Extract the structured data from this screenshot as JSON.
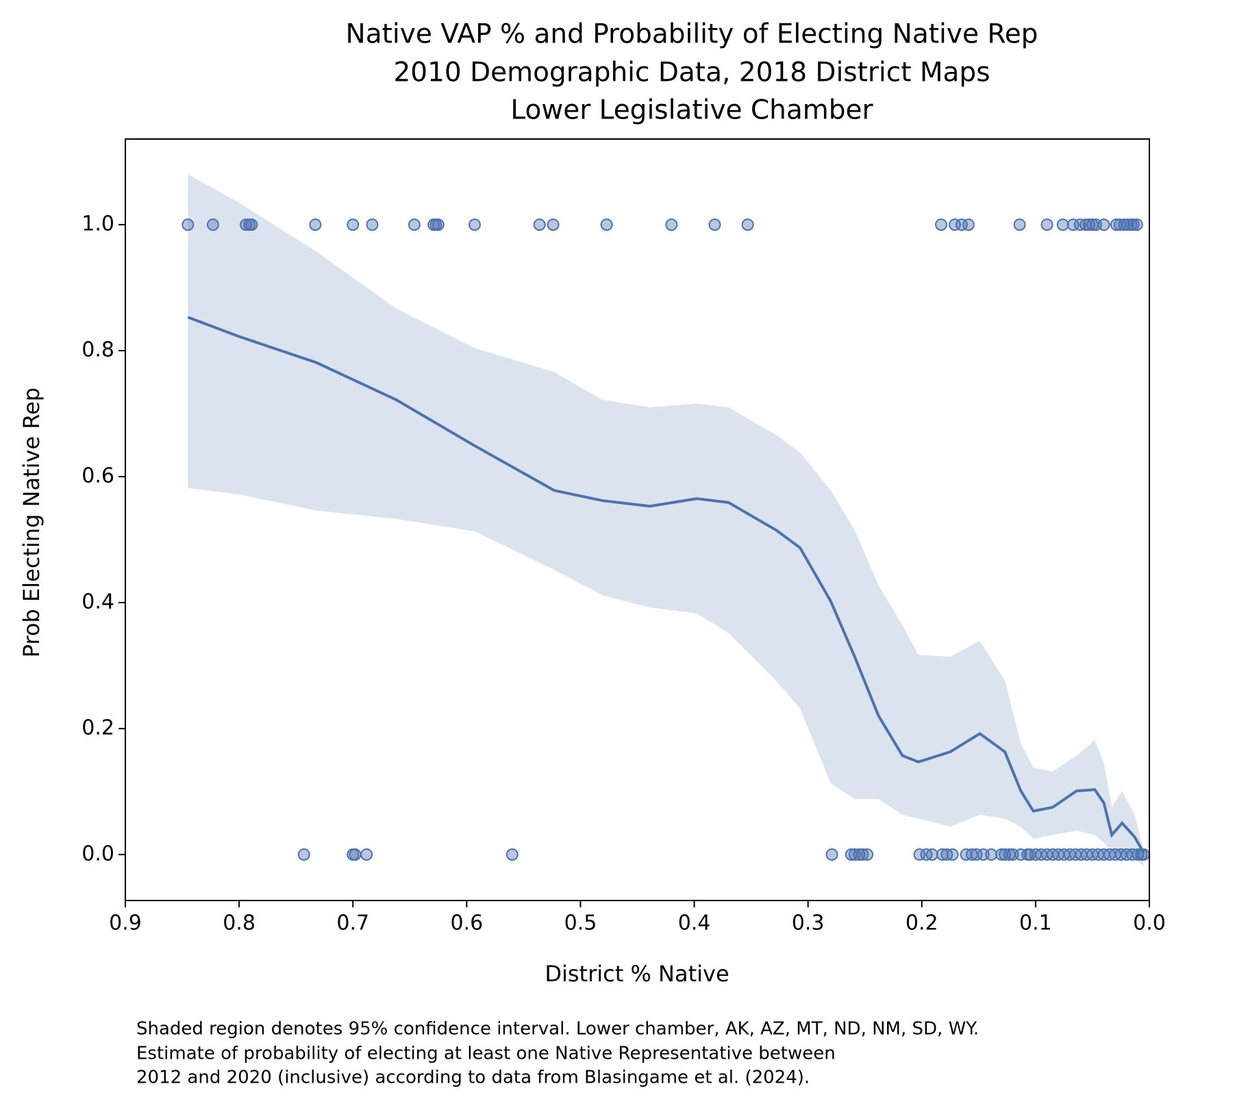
{
  "chart_data": {
    "type": "scatter",
    "title": [
      "Native VAP % and Probability of Electing Native Rep",
      "2010 Demographic Data, 2018 District Maps",
      "Lower Legislative Chamber"
    ],
    "xlabel": "District % Native",
    "ylabel": "Prob Electing Native Rep",
    "footnote": [
      "Shaded region denotes 95% confidence interval. Lower chamber, AK, AZ, MT, ND, NM, SD, WY.",
      "Estimate of probability of electing at least one Native Representative between",
      "2012 and 2020 (inclusive) according to data from Blasingame et al. (2024)."
    ],
    "xlim": [
      0.9,
      0
    ],
    "ylim": [
      -0.073,
      1.136
    ],
    "xticks": [
      0.9,
      0.8,
      0.7,
      0.6,
      0.5,
      0.4,
      0.3,
      0.2,
      0.1,
      {
        "value": 0,
        "label": "0.0"
      }
    ],
    "yticks": [
      {
        "value": 0,
        "label": "0.0"
      },
      0.2,
      0.4,
      0.6,
      0.8,
      {
        "value": 1,
        "label": "1.0"
      }
    ],
    "color": "#4c72b0",
    "points": {
      "x": [
        0.845,
        0.823,
        0.794,
        0.791,
        0.789,
        0.733,
        0.7,
        0.683,
        0.646,
        0.629,
        0.627,
        0.625,
        0.593,
        0.536,
        0.524,
        0.477,
        0.42,
        0.382,
        0.353,
        0.183,
        0.171,
        0.165,
        0.159,
        0.114,
        0.09,
        0.076,
        0.067,
        0.061,
        0.056,
        0.053,
        0.05,
        0.047,
        0.04,
        0.029,
        0.026,
        0.022,
        0.019,
        0.016,
        0.014,
        0.011,
        0.743,
        0.7,
        0.698,
        0.688,
        0.56,
        0.279,
        0.262,
        0.259,
        0.255,
        0.252,
        0.248,
        0.202,
        0.196,
        0.191,
        0.182,
        0.178,
        0.173,
        0.161,
        0.156,
        0.152,
        0.146,
        0.139,
        0.13,
        0.127,
        0.123,
        0.12,
        0.113,
        0.107,
        0.105,
        0.1,
        0.095,
        0.09,
        0.085,
        0.08,
        0.075,
        0.07,
        0.065,
        0.06,
        0.055,
        0.05,
        0.045,
        0.04,
        0.035,
        0.03,
        0.025,
        0.02,
        0.015,
        0.01,
        0.007,
        0.005
      ],
      "values": [
        1,
        1,
        1,
        1,
        1,
        1,
        1,
        1,
        1,
        1,
        1,
        1,
        1,
        1,
        1,
        1,
        1,
        1,
        1,
        1,
        1,
        1,
        1,
        1,
        1,
        1,
        1,
        1,
        1,
        1,
        1,
        1,
        1,
        1,
        1,
        1,
        1,
        1,
        1,
        1,
        0,
        0,
        0,
        0,
        0,
        0,
        0,
        0,
        0,
        0,
        0,
        0,
        0,
        0,
        0,
        0,
        0,
        0,
        0,
        0,
        0,
        0,
        0,
        0,
        0,
        0,
        0,
        0,
        0,
        0,
        0,
        0,
        0,
        0,
        0,
        0,
        0,
        0,
        0,
        0,
        0,
        0,
        0,
        0,
        0,
        0,
        0,
        0,
        0,
        0
      ]
    },
    "fit": {
      "x": [
        0.845,
        0.801,
        0.732,
        0.662,
        0.593,
        0.523,
        0.481,
        0.439,
        0.398,
        0.37,
        0.328,
        0.307,
        0.28,
        0.259,
        0.238,
        0.217,
        0.203,
        0.175,
        0.149,
        0.127,
        0.113,
        0.102,
        0.085,
        0.064,
        0.048,
        0.04,
        0.033,
        0.024,
        0.013,
        0.005
      ],
      "values": [
        0.853,
        0.823,
        0.781,
        0.722,
        0.649,
        0.578,
        0.562,
        0.553,
        0.565,
        0.559,
        0.515,
        0.487,
        0.402,
        0.314,
        0.22,
        0.157,
        0.147,
        0.163,
        0.192,
        0.163,
        0.101,
        0.069,
        0.075,
        0.101,
        0.103,
        0.082,
        0.031,
        0.05,
        0.028,
        0.003
      ],
      "upper": [
        1.08,
        1.036,
        0.957,
        0.867,
        0.804,
        0.766,
        0.722,
        0.71,
        0.716,
        0.71,
        0.666,
        0.638,
        0.578,
        0.515,
        0.427,
        0.364,
        0.317,
        0.314,
        0.339,
        0.276,
        0.176,
        0.138,
        0.132,
        0.157,
        0.182,
        0.144,
        0.075,
        0.101,
        0.063,
        0.006
      ],
      "lower": [
        0.582,
        0.572,
        0.546,
        0.533,
        0.513,
        0.452,
        0.412,
        0.392,
        0.383,
        0.352,
        0.276,
        0.232,
        0.113,
        0.088,
        0.088,
        0.063,
        0.057,
        0.044,
        0.063,
        0.057,
        0.044,
        0.025,
        0.031,
        0.038,
        0.031,
        0.019,
        0.006,
        0,
        -0.006,
        -0.019
      ]
    }
  }
}
